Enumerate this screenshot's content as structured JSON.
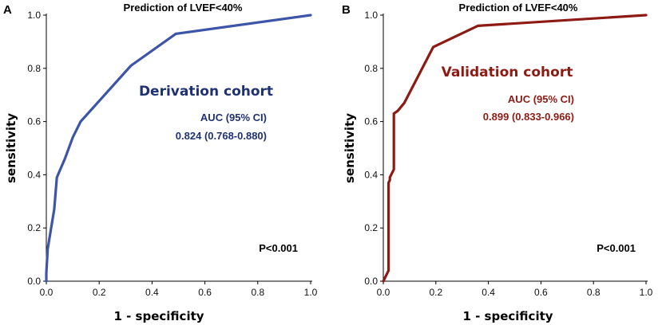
{
  "chart_data": [
    {
      "panel_letter": "A",
      "type": "line",
      "title": "Prediction of LVEF<40%",
      "xlabel": "1 - specificity",
      "ylabel": "sensitivity",
      "xlim": [
        0,
        1
      ],
      "ylim": [
        0,
        1
      ],
      "x_ticks": [
        "0.0",
        "0.2",
        "0.4",
        "0.6",
        "0.8",
        "1.0"
      ],
      "y_ticks": [
        "0.0",
        "0.2",
        "0.4",
        "0.6",
        "0.8",
        "1.0"
      ],
      "series": [
        {
          "name": "Derivation cohort",
          "color": "#3c55a8",
          "x": [
            0.0,
            0.0,
            0.005,
            0.01,
            0.03,
            0.04,
            0.07,
            0.1,
            0.13,
            0.32,
            0.49,
            1.0
          ],
          "y": [
            0.0,
            0.03,
            0.12,
            0.15,
            0.27,
            0.39,
            0.46,
            0.54,
            0.6,
            0.81,
            0.93,
            1.0
          ]
        }
      ],
      "annotations": {
        "cohort": "Derivation cohort",
        "auc_label": "AUC (95% CI)",
        "auc_value": "0.824 (0.768-0.880)",
        "p_value": "P<0.001"
      },
      "annotation_color": "#1f3175"
    },
    {
      "panel_letter": "B",
      "type": "line",
      "title": "Prediction of LVEF<40%",
      "xlabel": "1 - specificity",
      "ylabel": "sensitivity",
      "xlim": [
        0,
        1
      ],
      "ylim": [
        0,
        1
      ],
      "x_ticks": [
        "0.0",
        "0.2",
        "0.4",
        "0.6",
        "0.8",
        "1.0"
      ],
      "y_ticks": [
        "0.0",
        "0.2",
        "0.4",
        "0.6",
        "0.8",
        "1.0"
      ],
      "series": [
        {
          "name": "Validation cohort",
          "color": "#8e1a14",
          "x": [
            0.0,
            0.02,
            0.02,
            0.025,
            0.025,
            0.04,
            0.04,
            0.055,
            0.08,
            0.19,
            0.36,
            1.0
          ],
          "y": [
            0.0,
            0.04,
            0.37,
            0.38,
            0.39,
            0.42,
            0.63,
            0.64,
            0.67,
            0.88,
            0.96,
            1.0
          ]
        }
      ],
      "annotations": {
        "cohort": "Validation cohort",
        "auc_label": "AUC (95% CI)",
        "auc_value": "0.899 (0.833-0.966)",
        "p_value": "P<0.001"
      },
      "annotation_color": "#8e1a14"
    }
  ]
}
